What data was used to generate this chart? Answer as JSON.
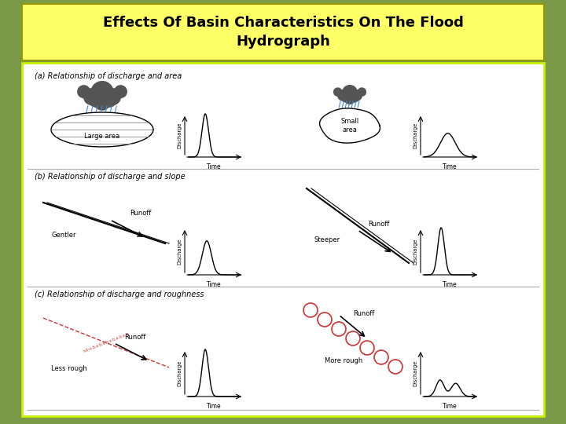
{
  "title": "Effects Of Basin Characteristics On The Flood\nHydrograph",
  "title_bg": "#ffff66",
  "outer_bg": "#7a9a4a",
  "inner_bg": "#ffffff",
  "inner_border": "#ccee00",
  "title_color": "#000000",
  "section_a": "(a) Relationship of discharge and area",
  "section_b": "(b) Relationship of discharge and slope",
  "section_c": "(c) Relationship of discharge and roughness",
  "label_large_area": "Large area",
  "label_small_area": "Small\narea",
  "label_gentler": "Gentler",
  "label_steeper": "Steeper",
  "label_less_rough": "Less rough",
  "label_more_rough": "More rough",
  "label_runoff": "Runoff",
  "label_time": "Time",
  "label_discharge": "Discharge"
}
